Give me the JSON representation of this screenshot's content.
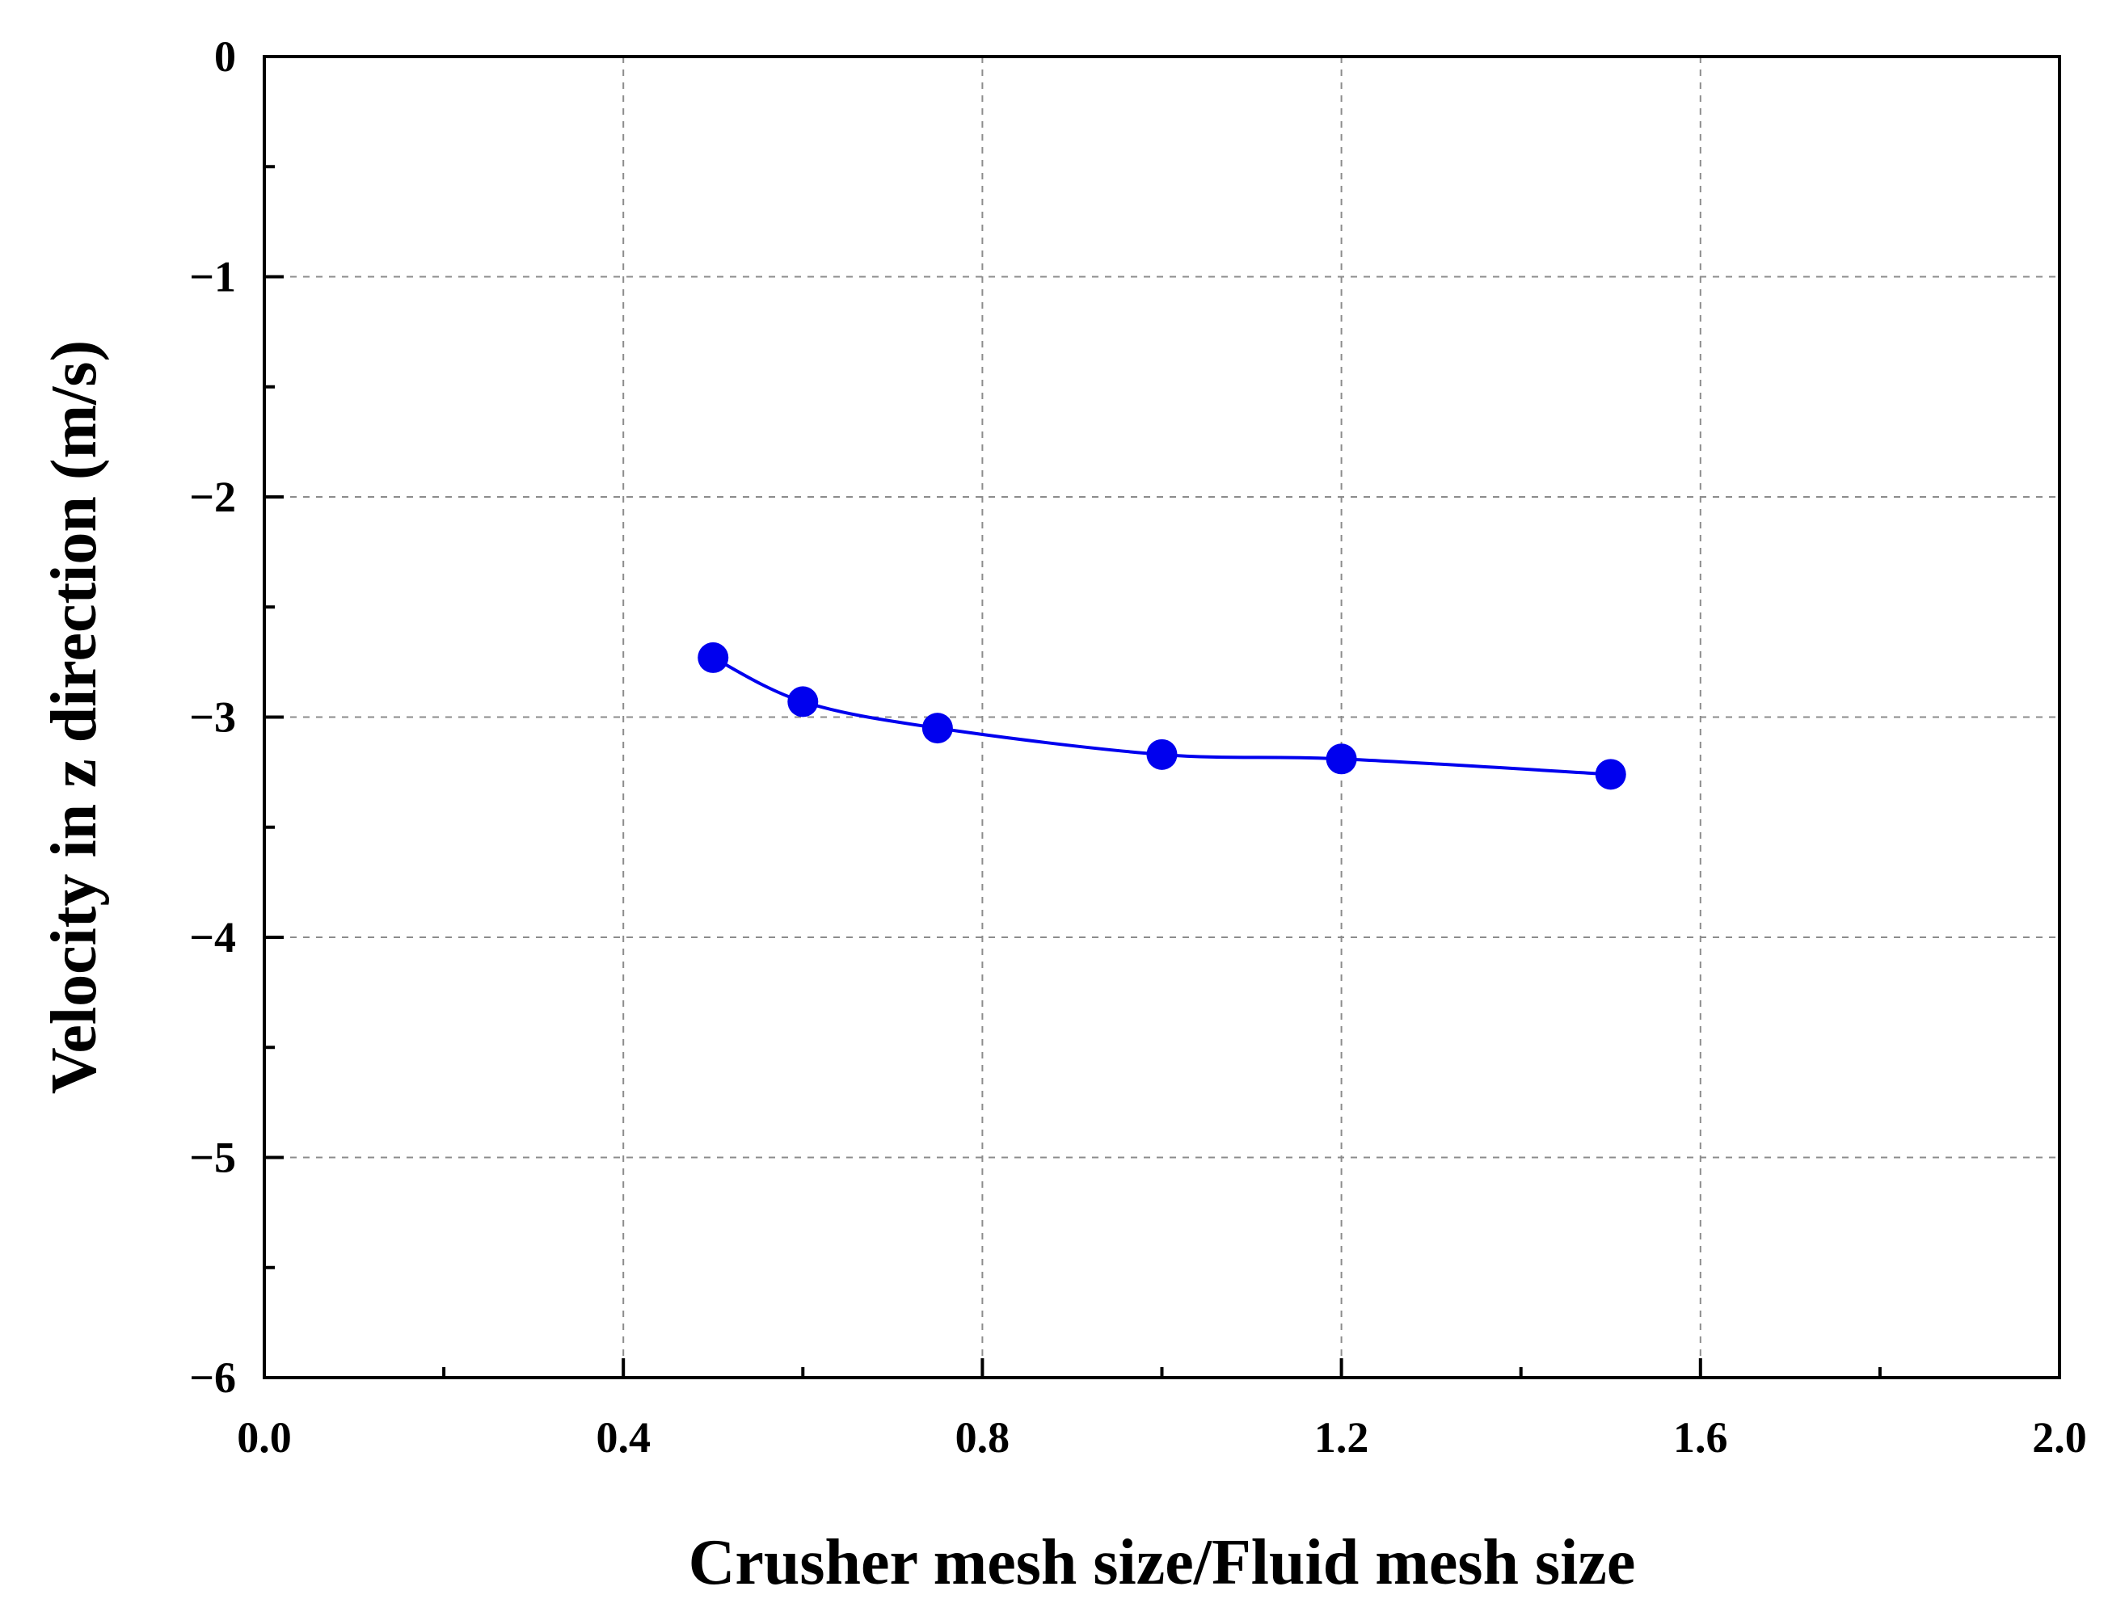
{
  "chart_data": {
    "type": "line",
    "title": "",
    "xlabel": "Crusher mesh size/Fluid mesh size",
    "ylabel": "Velocity in z direction (m/s)",
    "xlim": [
      0.0,
      2.0
    ],
    "ylim": [
      -6,
      0
    ],
    "x_ticks": [
      "0.0",
      "0.4",
      "0.8",
      "1.2",
      "1.6",
      "2.0"
    ],
    "y_ticks": [
      "0",
      "−1",
      "−2",
      "−3",
      "−4",
      "−5",
      "−6"
    ],
    "grid": true,
    "legend": "none",
    "series": [
      {
        "color": "#0000ee",
        "marker": "circle",
        "x": [
          0.5,
          0.6,
          0.75,
          1.0,
          1.2,
          1.5
        ],
        "y": [
          -2.73,
          -2.93,
          -3.05,
          -3.17,
          -3.19,
          -3.26
        ]
      }
    ]
  }
}
